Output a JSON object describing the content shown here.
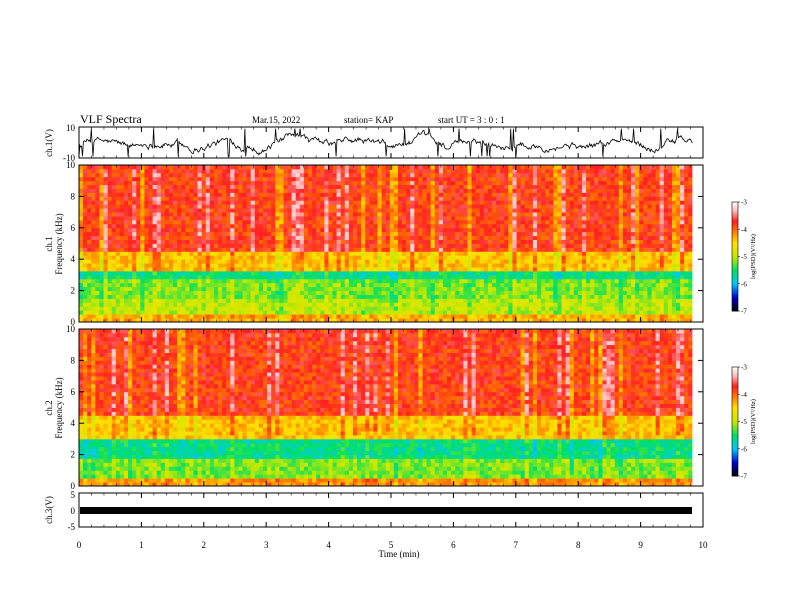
{
  "header": {
    "title": "VLF Spectra",
    "date": "Mar.15, 2022",
    "station": "station= KAP",
    "start": "start UT =  3 : 0  : 1"
  },
  "colorbar": {
    "label": "log(PSD)(V²/Hz)",
    "ticks": [
      "-3",
      "-4",
      "-5",
      "-6",
      "-7"
    ],
    "range": [
      -7,
      -3
    ],
    "colors": [
      "#000000",
      "#0000c0",
      "#00c8ff",
      "#00e060",
      "#c8e800",
      "#ffe000",
      "#ff8000",
      "#ff2020",
      "#ffc0c0",
      "#ffffff"
    ]
  },
  "chart_data": [
    {
      "type": "line",
      "name": "ch.1",
      "ylabel": "ch.1(V)",
      "ylim": [
        -10,
        10
      ],
      "yticks": [
        "10",
        "-10"
      ],
      "xlim": [
        0,
        10
      ],
      "style": "noisy waveform centred near zero, amplitude about ±6 V",
      "color": "#000000"
    },
    {
      "type": "heatmap",
      "name": "ch.1 spectrogram",
      "ylabel": "ch.1 Frequency (kHz)",
      "ylim": [
        0,
        10
      ],
      "yticks": [
        "0",
        "2",
        "4",
        "6",
        "8",
        "10"
      ],
      "xlim": [
        0,
        9.83
      ],
      "bands_khz": [
        {
          "from": 0.0,
          "to": 0.5,
          "level": -4.3
        },
        {
          "from": 0.5,
          "to": 1.5,
          "level": -5.0
        },
        {
          "from": 1.5,
          "to": 2.8,
          "level": -5.2
        },
        {
          "from": 2.8,
          "to": 3.3,
          "level": -5.6
        },
        {
          "from": 3.3,
          "to": 4.5,
          "level": -4.4
        },
        {
          "from": 4.5,
          "to": 10.0,
          "level": -3.8
        }
      ]
    },
    {
      "type": "heatmap",
      "name": "ch.2 spectrogram",
      "ylabel": "ch.2 Frequency (kHz)",
      "ylim": [
        0,
        10
      ],
      "yticks": [
        "0",
        "2",
        "4",
        "6",
        "8",
        "10"
      ],
      "xlim": [
        0,
        9.83
      ],
      "bands_khz": [
        {
          "from": 0.0,
          "to": 0.5,
          "level": -4.2
        },
        {
          "from": 0.5,
          "to": 1.8,
          "level": -5.2
        },
        {
          "from": 1.8,
          "to": 3.0,
          "level": -5.6
        },
        {
          "from": 3.0,
          "to": 4.5,
          "level": -4.4
        },
        {
          "from": 4.5,
          "to": 10.0,
          "level": -3.8
        }
      ]
    },
    {
      "type": "line",
      "name": "ch.3",
      "ylabel": "ch.3(V)",
      "ylim": [
        -5,
        5
      ],
      "yticks": [
        "5",
        "0",
        "-5"
      ],
      "xlim": [
        0,
        10
      ],
      "style": "flat thick band near -1 V",
      "level": -1,
      "color": "#000000"
    }
  ],
  "x_axis": {
    "label": "Time (min)",
    "range": [
      0,
      10
    ],
    "ticks": [
      "0",
      "1",
      "2",
      "3",
      "4",
      "5",
      "6",
      "7",
      "8",
      "9",
      "10"
    ]
  }
}
